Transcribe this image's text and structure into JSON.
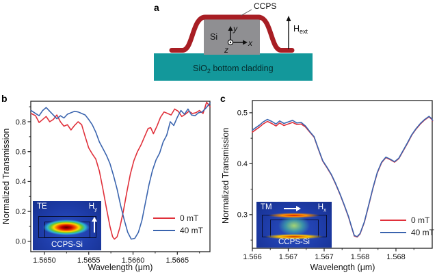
{
  "figure": {
    "panel_a": {
      "label": "a",
      "ccps_label": "CCPS",
      "si_label": "Si",
      "axis_y": "y",
      "axis_x": "x",
      "axis_z": "z",
      "h_main": "H",
      "h_sub": "ext",
      "sio2_prefix": "SiO",
      "sio2_sub": "2",
      "sio2_suffix": " bottom cladding",
      "colors": {
        "ccps_red": "#a81e24",
        "si_gray": "#8f8f92",
        "sio2_teal": "#13989b"
      }
    },
    "panel_b": {
      "label": "b",
      "y_label": "Normalized Transmission",
      "x_label": "Wavelength (μm)",
      "legend": [
        {
          "label": "0 mT",
          "color": "#e0303a"
        },
        {
          "label": "40 mT",
          "color": "#3a64ae"
        }
      ],
      "inset": {
        "mode": "TE",
        "h_main": "H",
        "h_sub": "y",
        "material": "CCPS-Si"
      }
    },
    "panel_c": {
      "label": "c",
      "y_label": "Normalized Transmission",
      "x_label": "Wavelength (μm)",
      "legend": [
        {
          "label": "0 mT",
          "color": "#e0303a"
        },
        {
          "label": "40 mT",
          "color": "#3a64ae"
        }
      ],
      "inset": {
        "mode": "TM",
        "h_main": "H",
        "h_sub": "x",
        "material": "CCPS-Si"
      }
    }
  },
  "chart_data": [
    {
      "id": "panel-b",
      "type": "line",
      "title": "",
      "xlabel": "Wavelength (μm)",
      "ylabel": "Normalized Transmission",
      "x_range": [
        1.564846,
        1.566868
      ],
      "y_range": [
        -0.069,
        0.937
      ],
      "grid": false,
      "legend_position": "lower right",
      "x_ticks": [
        {
          "v": 1.565,
          "label": "1.5650"
        },
        {
          "v": 1.5655,
          "label": "1.5655"
        },
        {
          "v": 1.566,
          "label": "1.5660"
        },
        {
          "v": 1.5665,
          "label": "1.5665"
        }
      ],
      "x_minor": [
        1.56525,
        1.56575,
        1.56625,
        1.56675
      ],
      "y_ticks": [
        {
          "v": 0.0,
          "label": "0.0"
        },
        {
          "v": 0.2,
          "label": "0.2"
        },
        {
          "v": 0.4,
          "label": "0.4"
        },
        {
          "v": 0.6,
          "label": "0.6"
        },
        {
          "v": 0.8,
          "label": "0.8"
        }
      ],
      "y_minor": [
        0.1,
        0.3,
        0.5,
        0.7,
        0.9
      ],
      "series": [
        {
          "name": "0 mT",
          "color": "#e0303a",
          "points": [
            [
              1.56485,
              0.855
            ],
            [
              1.5649,
              0.84
            ],
            [
              1.56494,
              0.795
            ],
            [
              1.56498,
              0.815
            ],
            [
              1.56502,
              0.835
            ],
            [
              1.56506,
              0.8
            ],
            [
              1.5651,
              0.815
            ],
            [
              1.56514,
              0.845
            ],
            [
              1.56518,
              0.8
            ],
            [
              1.56522,
              0.77
            ],
            [
              1.56526,
              0.78
            ],
            [
              1.5653,
              0.745
            ],
            [
              1.56534,
              0.775
            ],
            [
              1.56538,
              0.8
            ],
            [
              1.56542,
              0.78
            ],
            [
              1.56546,
              0.7
            ],
            [
              1.5655,
              0.625
            ],
            [
              1.56554,
              0.585
            ],
            [
              1.56558,
              0.55
            ],
            [
              1.56562,
              0.47
            ],
            [
              1.56566,
              0.35
            ],
            [
              1.5657,
              0.22
            ],
            [
              1.56574,
              0.1
            ],
            [
              1.56577,
              0.03
            ],
            [
              1.56579,
              0.015
            ],
            [
              1.56582,
              0.03
            ],
            [
              1.56585,
              0.09
            ],
            [
              1.56589,
              0.2
            ],
            [
              1.56593,
              0.33
            ],
            [
              1.56597,
              0.45
            ],
            [
              1.56601,
              0.54
            ],
            [
              1.56605,
              0.6
            ],
            [
              1.56609,
              0.645
            ],
            [
              1.56613,
              0.7
            ],
            [
              1.56617,
              0.755
            ],
            [
              1.5662,
              0.76
            ],
            [
              1.56623,
              0.72
            ],
            [
              1.56627,
              0.77
            ],
            [
              1.56631,
              0.83
            ],
            [
              1.56635,
              0.865
            ],
            [
              1.56639,
              0.855
            ],
            [
              1.56643,
              0.845
            ],
            [
              1.56647,
              0.885
            ],
            [
              1.56651,
              0.87
            ],
            [
              1.56655,
              0.835
            ],
            [
              1.56659,
              0.85
            ],
            [
              1.56663,
              0.87
            ],
            [
              1.56667,
              0.855
            ],
            [
              1.56671,
              0.86
            ],
            [
              1.56675,
              0.875
            ],
            [
              1.56679,
              0.855
            ],
            [
              1.56683,
              0.93
            ],
            [
              1.56687,
              0.9
            ]
          ]
        },
        {
          "name": "40 mT",
          "color": "#3a64ae",
          "points": [
            [
              1.56485,
              0.875
            ],
            [
              1.5649,
              0.855
            ],
            [
              1.56494,
              0.84
            ],
            [
              1.56498,
              0.875
            ],
            [
              1.56502,
              0.895
            ],
            [
              1.56506,
              0.87
            ],
            [
              1.5651,
              0.845
            ],
            [
              1.56514,
              0.82
            ],
            [
              1.56518,
              0.84
            ],
            [
              1.56522,
              0.825
            ],
            [
              1.56526,
              0.85
            ],
            [
              1.5653,
              0.86
            ],
            [
              1.56534,
              0.87
            ],
            [
              1.56538,
              0.865
            ],
            [
              1.56542,
              0.855
            ],
            [
              1.56546,
              0.845
            ],
            [
              1.5655,
              0.815
            ],
            [
              1.56554,
              0.78
            ],
            [
              1.56558,
              0.73
            ],
            [
              1.56562,
              0.665
            ],
            [
              1.56566,
              0.62
            ],
            [
              1.5657,
              0.575
            ],
            [
              1.56574,
              0.52
            ],
            [
              1.56578,
              0.44
            ],
            [
              1.56582,
              0.35
            ],
            [
              1.56586,
              0.24
            ],
            [
              1.5659,
              0.145
            ],
            [
              1.56594,
              0.06
            ],
            [
              1.56598,
              0.015
            ],
            [
              1.56602,
              0.02
            ],
            [
              1.56606,
              0.06
            ],
            [
              1.5661,
              0.14
            ],
            [
              1.56614,
              0.26
            ],
            [
              1.56618,
              0.38
            ],
            [
              1.56622,
              0.475
            ],
            [
              1.56626,
              0.545
            ],
            [
              1.5663,
              0.59
            ],
            [
              1.56634,
              0.665
            ],
            [
              1.56638,
              0.71
            ],
            [
              1.56642,
              0.8
            ],
            [
              1.56646,
              0.775
            ],
            [
              1.5665,
              0.83
            ],
            [
              1.56654,
              0.875
            ],
            [
              1.56658,
              0.85
            ],
            [
              1.56662,
              0.885
            ],
            [
              1.56666,
              0.845
            ],
            [
              1.5667,
              0.84
            ],
            [
              1.56674,
              0.86
            ],
            [
              1.56678,
              0.865
            ],
            [
              1.56682,
              0.89
            ],
            [
              1.56687,
              0.925
            ]
          ]
        }
      ]
    },
    {
      "id": "panel-c",
      "type": "line",
      "title": "",
      "xlabel": "Wavelength (μm)",
      "ylabel": "Normalized Transmission",
      "x_range": [
        1.566,
        1.568505
      ],
      "y_range": [
        0.234,
        0.524
      ],
      "grid": false,
      "legend_position": "lower right",
      "x_ticks": [
        {
          "v": 1.566,
          "label": "1.566"
        },
        {
          "v": 1.5665,
          "label": "1.567"
        },
        {
          "v": 1.567,
          "label": "1.567"
        },
        {
          "v": 1.5675,
          "label": "1.568"
        },
        {
          "v": 1.568,
          "label": "1.568"
        }
      ],
      "x_minor": [
        1.56625,
        1.56675,
        1.56725,
        1.56775,
        1.56825
      ],
      "y_ticks": [
        {
          "v": 0.3,
          "label": "0.3"
        },
        {
          "v": 0.4,
          "label": "0.4"
        },
        {
          "v": 0.5,
          "label": "0.5"
        }
      ],
      "y_minor": [
        0.25,
        0.35,
        0.45
      ],
      "series": [
        {
          "name": "0 mT",
          "color": "#e0303a",
          "points": [
            [
              1.566,
              0.462
            ],
            [
              1.5661,
              0.472
            ],
            [
              1.56615,
              0.478
            ],
            [
              1.56621,
              0.483
            ],
            [
              1.56627,
              0.479
            ],
            [
              1.56633,
              0.474
            ],
            [
              1.56638,
              0.48
            ],
            [
              1.56644,
              0.475
            ],
            [
              1.5665,
              0.478
            ],
            [
              1.56656,
              0.481
            ],
            [
              1.56662,
              0.477
            ],
            [
              1.56668,
              0.478
            ],
            [
              1.56674,
              0.472
            ],
            [
              1.5668,
              0.462
            ],
            [
              1.56686,
              0.452
            ],
            [
              1.56692,
              0.428
            ],
            [
              1.56698,
              0.405
            ],
            [
              1.56704,
              0.392
            ],
            [
              1.5671,
              0.378
            ],
            [
              1.56716,
              0.36
            ],
            [
              1.56722,
              0.34
            ],
            [
              1.56728,
              0.318
            ],
            [
              1.56734,
              0.295
            ],
            [
              1.56738,
              0.276
            ],
            [
              1.56742,
              0.258
            ],
            [
              1.56746,
              0.256
            ],
            [
              1.5675,
              0.262
            ],
            [
              1.56756,
              0.285
            ],
            [
              1.56762,
              0.318
            ],
            [
              1.56768,
              0.352
            ],
            [
              1.56774,
              0.382
            ],
            [
              1.5678,
              0.402
            ],
            [
              1.56786,
              0.412
            ],
            [
              1.56792,
              0.408
            ],
            [
              1.56798,
              0.403
            ],
            [
              1.56804,
              0.41
            ],
            [
              1.5681,
              0.425
            ],
            [
              1.56816,
              0.44
            ],
            [
              1.56822,
              0.456
            ],
            [
              1.56828,
              0.468
            ],
            [
              1.56834,
              0.478
            ],
            [
              1.5684,
              0.486
            ],
            [
              1.56846,
              0.492
            ],
            [
              1.5685,
              0.487
            ],
            [
              1.56851,
              0.484
            ]
          ]
        },
        {
          "name": "40 mT",
          "color": "#3a64ae",
          "points": [
            [
              1.566,
              0.466
            ],
            [
              1.5661,
              0.476
            ],
            [
              1.56615,
              0.482
            ],
            [
              1.56621,
              0.487
            ],
            [
              1.56627,
              0.483
            ],
            [
              1.56633,
              0.478
            ],
            [
              1.56638,
              0.484
            ],
            [
              1.56644,
              0.479
            ],
            [
              1.5665,
              0.482
            ],
            [
              1.56656,
              0.485
            ],
            [
              1.56662,
              0.48
            ],
            [
              1.56668,
              0.481
            ],
            [
              1.56674,
              0.474
            ],
            [
              1.5668,
              0.463
            ],
            [
              1.56686,
              0.453
            ],
            [
              1.56692,
              0.429
            ],
            [
              1.56698,
              0.406
            ],
            [
              1.56704,
              0.393
            ],
            [
              1.5671,
              0.379
            ],
            [
              1.56716,
              0.361
            ],
            [
              1.56722,
              0.341
            ],
            [
              1.56728,
              0.319
            ],
            [
              1.56734,
              0.296
            ],
            [
              1.56738,
              0.277
            ],
            [
              1.56742,
              0.259
            ],
            [
              1.56746,
              0.257
            ],
            [
              1.5675,
              0.263
            ],
            [
              1.56756,
              0.286
            ],
            [
              1.56762,
              0.319
            ],
            [
              1.56768,
              0.353
            ],
            [
              1.56774,
              0.383
            ],
            [
              1.5678,
              0.403
            ],
            [
              1.56786,
              0.413
            ],
            [
              1.56792,
              0.409
            ],
            [
              1.56798,
              0.404
            ],
            [
              1.56804,
              0.411
            ],
            [
              1.5681,
              0.426
            ],
            [
              1.56816,
              0.441
            ],
            [
              1.56822,
              0.457
            ],
            [
              1.56828,
              0.469
            ],
            [
              1.56834,
              0.479
            ],
            [
              1.5684,
              0.487
            ],
            [
              1.56846,
              0.493
            ],
            [
              1.5685,
              0.488
            ],
            [
              1.56851,
              0.485
            ]
          ]
        }
      ]
    }
  ]
}
